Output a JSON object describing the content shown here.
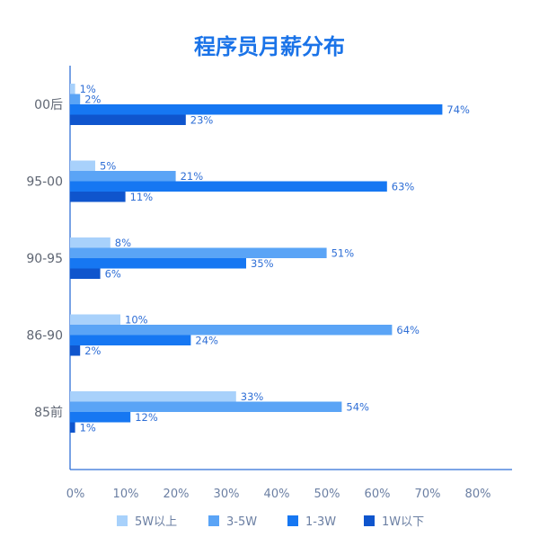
{
  "chart_data": {
    "type": "bar",
    "orientation": "horizontal",
    "title": "程序员月薪分布",
    "categories": [
      "00后",
      "95-00",
      "90-95",
      "86-90",
      "85前"
    ],
    "series": [
      {
        "name": "5W以上",
        "color": "#a8d1fb",
        "values": [
          1,
          5,
          8,
          10,
          33
        ]
      },
      {
        "name": "3-5W",
        "color": "#5aa4f6",
        "values": [
          2,
          21,
          51,
          64,
          54
        ]
      },
      {
        "name": "1-3W",
        "color": "#1677f2",
        "values": [
          74,
          63,
          35,
          24,
          12
        ]
      },
      {
        "name": "1W以下",
        "color": "#0f55cd",
        "values": [
          23,
          11,
          6,
          2,
          1
        ]
      }
    ],
    "value_suffix": "%",
    "xlim": [
      0,
      80
    ],
    "xticks": [
      "0%",
      "10%",
      "20%",
      "30%",
      "40%",
      "50%",
      "60%",
      "70%",
      "80%"
    ],
    "grid": false,
    "legend_position": "bottom",
    "colors": {
      "title": "#1a73e8",
      "axis": "#2f6fd6",
      "category_label": "#5f6673",
      "tick_label": "#6b7fa3",
      "data_label": "#2f6fd6",
      "legend_label": "#6b7fa3"
    }
  }
}
